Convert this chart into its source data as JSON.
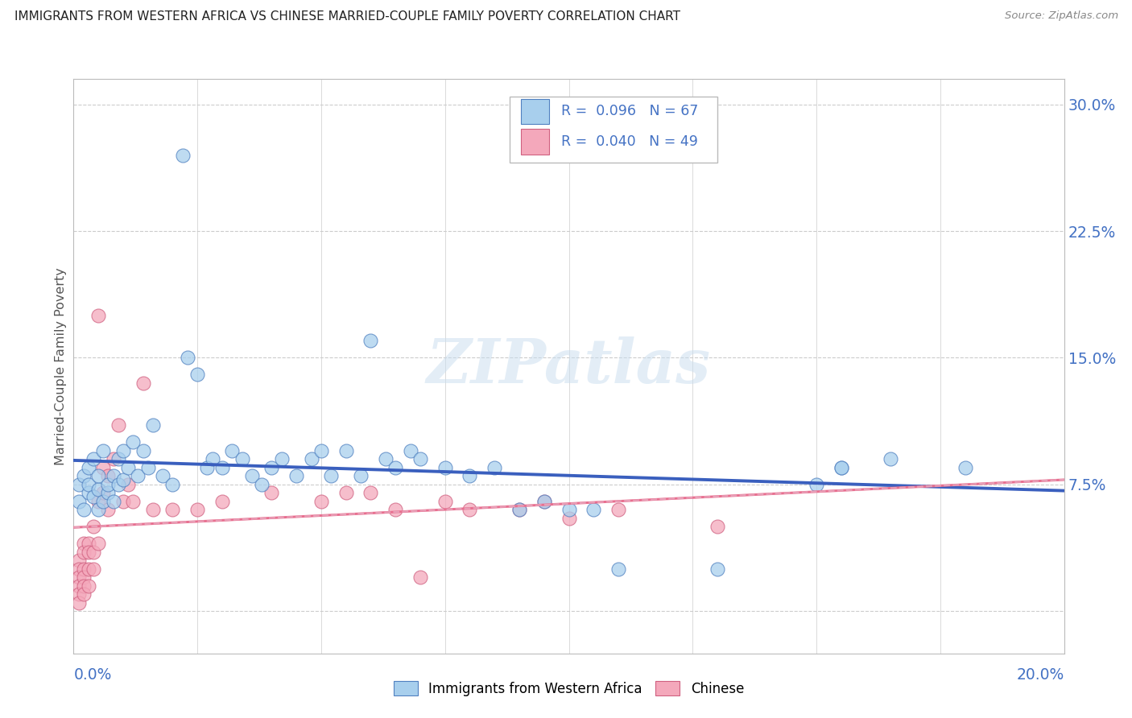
{
  "title": "IMMIGRANTS FROM WESTERN AFRICA VS CHINESE MARRIED-COUPLE FAMILY POVERTY CORRELATION CHART",
  "source": "Source: ZipAtlas.com",
  "ylabel": "Married-Couple Family Poverty",
  "right_yticks": [
    0.0,
    0.075,
    0.15,
    0.225,
    0.3
  ],
  "right_yticklabels": [
    "",
    "7.5%",
    "15.0%",
    "22.5%",
    "30.0%"
  ],
  "xmin": 0.0,
  "xmax": 0.2,
  "ymin": -0.025,
  "ymax": 0.315,
  "legend_r1": "0.096",
  "legend_n1": "67",
  "legend_r2": "0.040",
  "legend_n2": "49",
  "series1_label": "Immigrants from Western Africa",
  "series2_label": "Chinese",
  "color1": "#A8CFED",
  "color2": "#F4A8BB",
  "trendline1_color": "#3A5FBE",
  "trendline2_color": "#E87090",
  "trendline2_dashed_color": "#E8A0B8",
  "title_color": "#222222",
  "grid_color": "#CCCCCC",
  "axis_label_color": "#4472C4",
  "scatter1_x": [
    0.001,
    0.001,
    0.002,
    0.002,
    0.003,
    0.003,
    0.003,
    0.004,
    0.004,
    0.005,
    0.005,
    0.005,
    0.006,
    0.006,
    0.007,
    0.007,
    0.008,
    0.008,
    0.009,
    0.009,
    0.01,
    0.01,
    0.011,
    0.012,
    0.013,
    0.014,
    0.015,
    0.016,
    0.018,
    0.02,
    0.022,
    0.023,
    0.025,
    0.027,
    0.028,
    0.03,
    0.032,
    0.034,
    0.036,
    0.038,
    0.04,
    0.042,
    0.045,
    0.048,
    0.05,
    0.052,
    0.055,
    0.058,
    0.06,
    0.063,
    0.065,
    0.068,
    0.07,
    0.075,
    0.08,
    0.085,
    0.09,
    0.095,
    0.1,
    0.105,
    0.11,
    0.13,
    0.15,
    0.155,
    0.155,
    0.165,
    0.18
  ],
  "scatter1_y": [
    0.065,
    0.075,
    0.06,
    0.08,
    0.07,
    0.075,
    0.085,
    0.068,
    0.09,
    0.06,
    0.072,
    0.08,
    0.065,
    0.095,
    0.07,
    0.075,
    0.065,
    0.08,
    0.075,
    0.09,
    0.078,
    0.095,
    0.085,
    0.1,
    0.08,
    0.095,
    0.085,
    0.11,
    0.08,
    0.075,
    0.27,
    0.15,
    0.14,
    0.085,
    0.09,
    0.085,
    0.095,
    0.09,
    0.08,
    0.075,
    0.085,
    0.09,
    0.08,
    0.09,
    0.095,
    0.08,
    0.095,
    0.08,
    0.16,
    0.09,
    0.085,
    0.095,
    0.09,
    0.085,
    0.08,
    0.085,
    0.06,
    0.065,
    0.06,
    0.06,
    0.025,
    0.025,
    0.075,
    0.085,
    0.085,
    0.09,
    0.085
  ],
  "scatter2_x": [
    0.001,
    0.001,
    0.001,
    0.001,
    0.001,
    0.001,
    0.002,
    0.002,
    0.002,
    0.002,
    0.002,
    0.002,
    0.003,
    0.003,
    0.003,
    0.003,
    0.004,
    0.004,
    0.004,
    0.005,
    0.005,
    0.005,
    0.006,
    0.006,
    0.007,
    0.007,
    0.008,
    0.009,
    0.01,
    0.011,
    0.012,
    0.014,
    0.016,
    0.02,
    0.025,
    0.03,
    0.04,
    0.05,
    0.055,
    0.06,
    0.065,
    0.07,
    0.075,
    0.08,
    0.09,
    0.095,
    0.1,
    0.11,
    0.13
  ],
  "scatter2_y": [
    0.03,
    0.025,
    0.02,
    0.015,
    0.01,
    0.005,
    0.04,
    0.035,
    0.025,
    0.02,
    0.015,
    0.01,
    0.04,
    0.035,
    0.025,
    0.015,
    0.05,
    0.035,
    0.025,
    0.175,
    0.065,
    0.04,
    0.085,
    0.07,
    0.08,
    0.06,
    0.09,
    0.11,
    0.065,
    0.075,
    0.065,
    0.135,
    0.06,
    0.06,
    0.06,
    0.065,
    0.07,
    0.065,
    0.07,
    0.07,
    0.06,
    0.02,
    0.065,
    0.06,
    0.06,
    0.065,
    0.055,
    0.06,
    0.05
  ]
}
